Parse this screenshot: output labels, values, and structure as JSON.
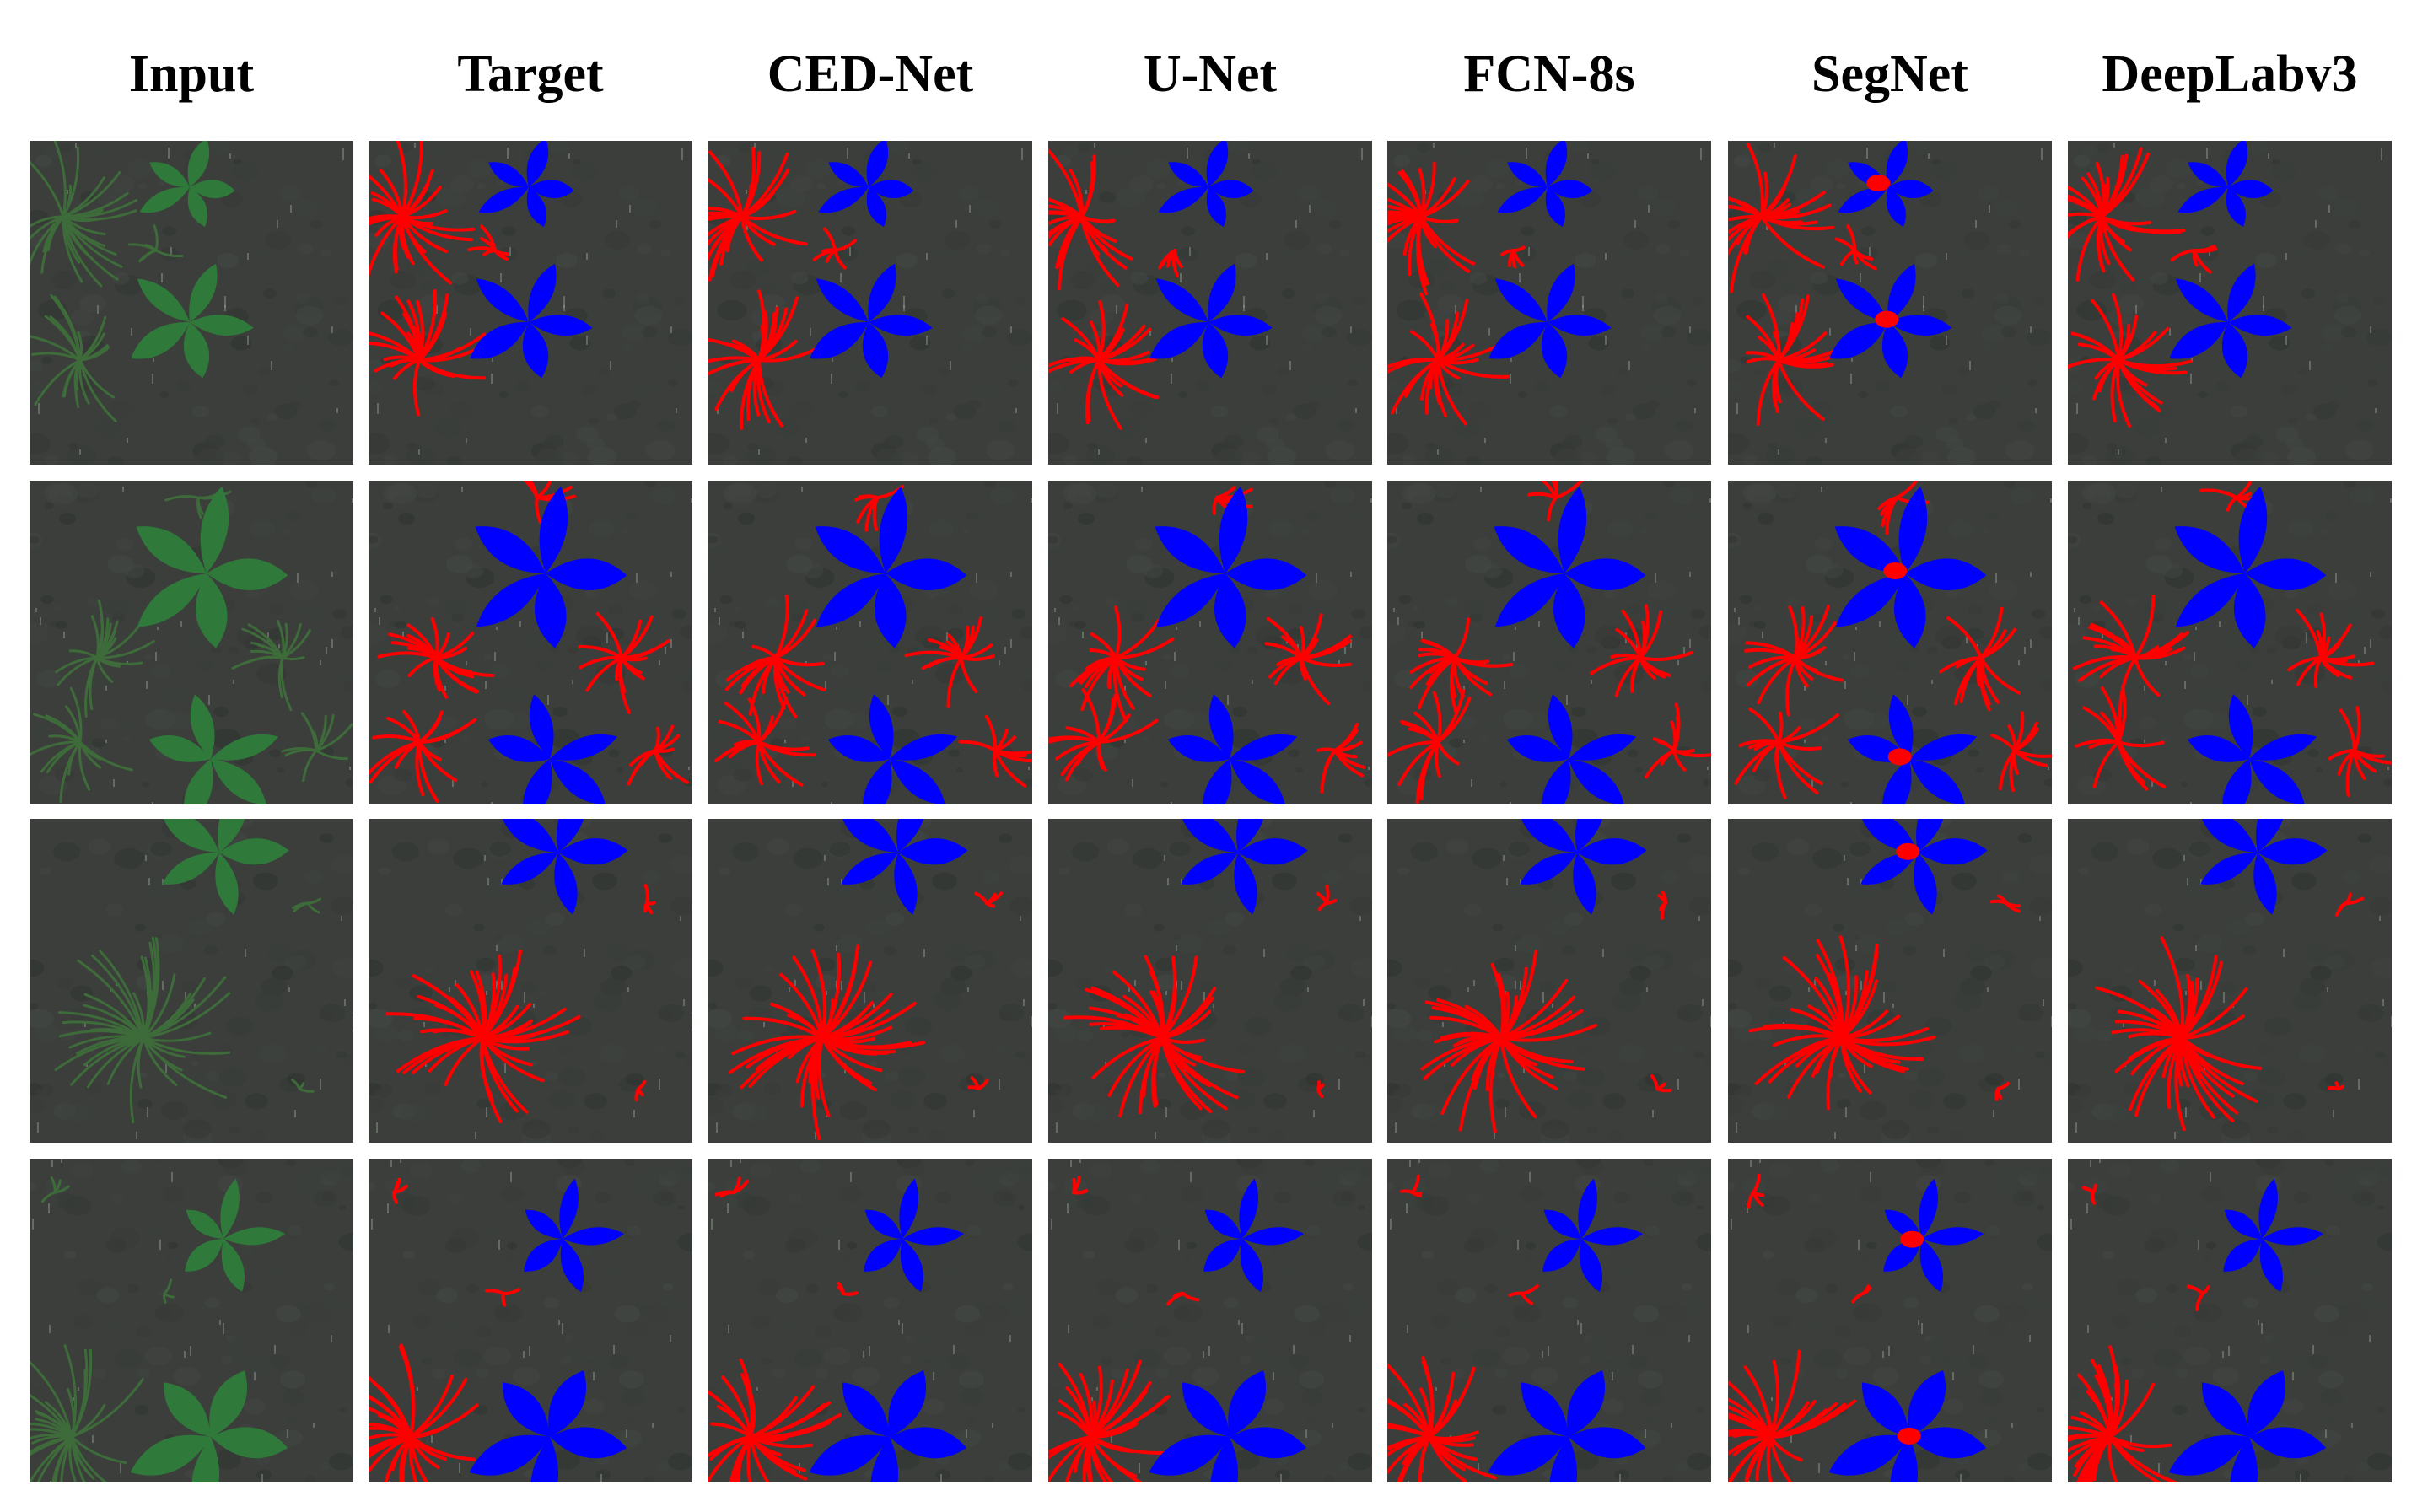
{
  "figure": {
    "columns": [
      "Input",
      "Target",
      "CED-Net",
      "U-Net",
      "FCN-8s",
      "SegNet",
      "DeepLabv3"
    ],
    "rows": 4
  },
  "colors": {
    "crop_mask": "#0000ff",
    "weed_mask": "#ff0000",
    "soil": "#3b3e3b",
    "plant_green": "#2f7a3a",
    "separator": "#ffffff"
  },
  "icons": {
    "crop_shape": "leaf-rosette-icon",
    "weed_shape": "grass-blade-icon"
  }
}
